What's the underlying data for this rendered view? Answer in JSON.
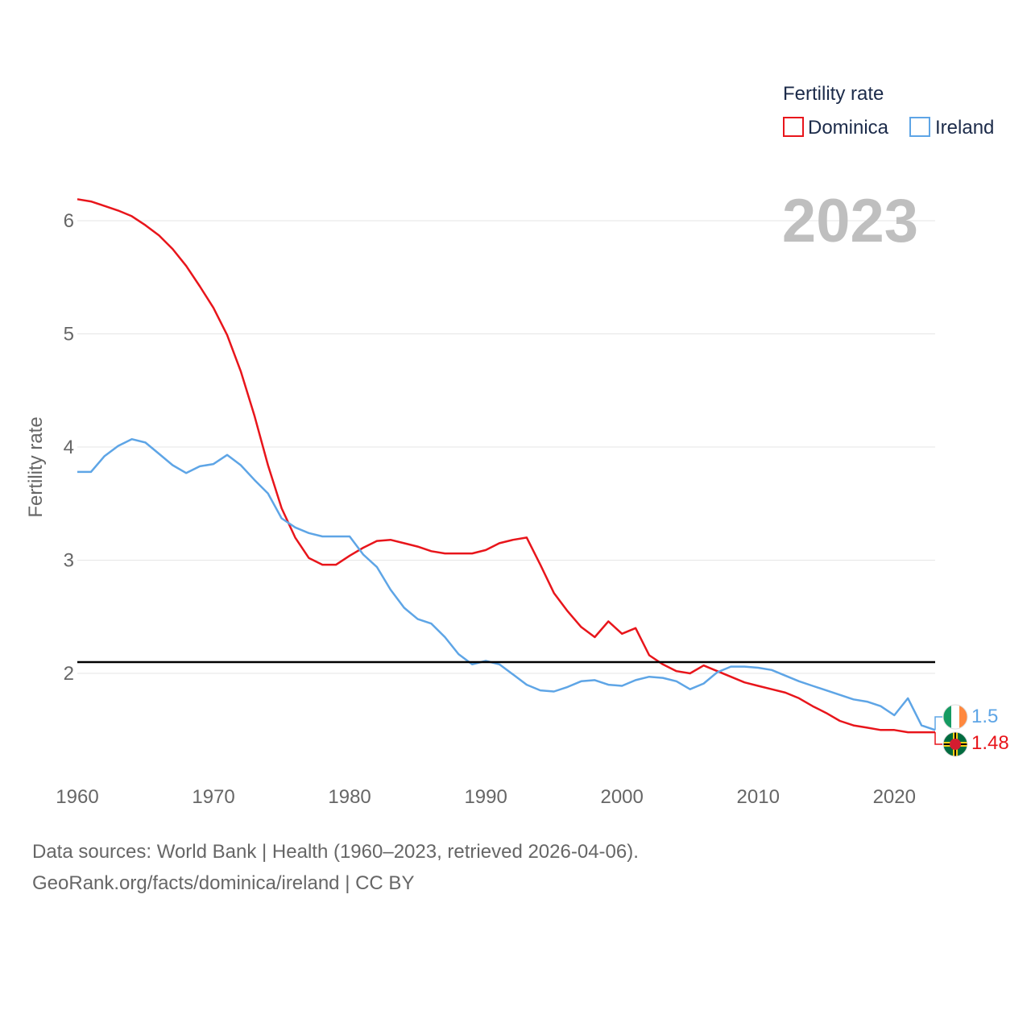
{
  "chart_data": {
    "type": "line",
    "title": "Fertility rate",
    "ylabel": "Fertility rate",
    "xlabel": "",
    "year_label": "2023",
    "xlim": [
      1960,
      2023
    ],
    "ylim": [
      1.2,
      6.2
    ],
    "x_ticks": [
      1960,
      1970,
      1980,
      1990,
      2000,
      2010,
      2020
    ],
    "y_ticks": [
      2,
      3,
      4,
      5,
      6
    ],
    "reference_line": 2.1,
    "reference_color": "#000000",
    "grid": true,
    "legend_position": "top-right",
    "series": [
      {
        "name": "Dominica",
        "color": "#e8151b",
        "end_label": "1.48",
        "x": [
          1960,
          1961,
          1962,
          1963,
          1964,
          1965,
          1966,
          1967,
          1968,
          1969,
          1970,
          1971,
          1972,
          1973,
          1974,
          1975,
          1976,
          1977,
          1978,
          1979,
          1980,
          1981,
          1982,
          1983,
          1984,
          1985,
          1986,
          1987,
          1988,
          1989,
          1990,
          1991,
          1992,
          1993,
          1994,
          1995,
          1996,
          1997,
          1998,
          1999,
          2000,
          2001,
          2002,
          2003,
          2004,
          2005,
          2006,
          2007,
          2008,
          2009,
          2010,
          2011,
          2012,
          2013,
          2014,
          2015,
          2016,
          2017,
          2018,
          2019,
          2020,
          2021,
          2022,
          2023
        ],
        "values": [
          6.19,
          6.17,
          6.13,
          6.09,
          6.04,
          5.96,
          5.87,
          5.75,
          5.6,
          5.42,
          5.23,
          4.99,
          4.67,
          4.28,
          3.84,
          3.46,
          3.2,
          3.02,
          2.96,
          2.96,
          3.04,
          3.11,
          3.17,
          3.18,
          3.15,
          3.12,
          3.08,
          3.06,
          3.06,
          3.06,
          3.09,
          3.15,
          3.18,
          3.2,
          2.96,
          2.71,
          2.55,
          2.41,
          2.32,
          2.46,
          2.35,
          2.4,
          2.16,
          2.08,
          2.02,
          2.0,
          2.07,
          2.02,
          1.97,
          1.92,
          1.89,
          1.86,
          1.83,
          1.78,
          1.71,
          1.65,
          1.58,
          1.54,
          1.52,
          1.5,
          1.5,
          1.48,
          1.48,
          1.48
        ]
      },
      {
        "name": "Ireland",
        "color": "#5ea5e6",
        "end_label": "1.5",
        "x": [
          1960,
          1961,
          1962,
          1963,
          1964,
          1965,
          1966,
          1967,
          1968,
          1969,
          1970,
          1971,
          1972,
          1973,
          1974,
          1975,
          1976,
          1977,
          1978,
          1979,
          1980,
          1981,
          1982,
          1983,
          1984,
          1985,
          1986,
          1987,
          1988,
          1989,
          1990,
          1991,
          1992,
          1993,
          1994,
          1995,
          1996,
          1997,
          1998,
          1999,
          2000,
          2001,
          2002,
          2003,
          2004,
          2005,
          2006,
          2007,
          2008,
          2009,
          2010,
          2011,
          2012,
          2013,
          2014,
          2015,
          2016,
          2017,
          2018,
          2019,
          2020,
          2021,
          2022,
          2023
        ],
        "values": [
          3.78,
          3.78,
          3.92,
          4.01,
          4.07,
          4.04,
          3.94,
          3.84,
          3.77,
          3.83,
          3.85,
          3.93,
          3.84,
          3.71,
          3.59,
          3.37,
          3.29,
          3.24,
          3.21,
          3.21,
          3.21,
          3.05,
          2.94,
          2.74,
          2.58,
          2.48,
          2.44,
          2.32,
          2.17,
          2.08,
          2.11,
          2.08,
          1.99,
          1.9,
          1.85,
          1.84,
          1.88,
          1.93,
          1.94,
          1.9,
          1.89,
          1.94,
          1.97,
          1.96,
          1.93,
          1.86,
          1.91,
          2.01,
          2.06,
          2.06,
          2.05,
          2.03,
          1.98,
          1.93,
          1.89,
          1.85,
          1.81,
          1.77,
          1.75,
          1.71,
          1.63,
          1.78,
          1.54,
          1.5
        ]
      }
    ]
  },
  "source": {
    "line1": "Data sources: World Bank | Health (1960–2023, retrieved 2026-04-06).",
    "line2": "GeoRank.org/facts/dominica/ireland | CC BY"
  }
}
